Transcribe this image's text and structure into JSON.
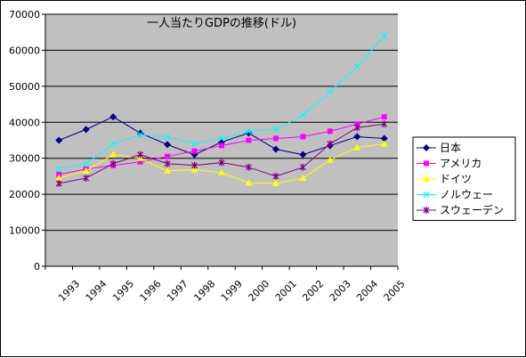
{
  "chart_data": {
    "type": "line",
    "title": "一人当たりGDPの推移(ドル)",
    "xlabel": "",
    "ylabel": "",
    "categories": [
      "1993",
      "1994",
      "1995",
      "1996",
      "1997",
      "1998",
      "1999",
      "2000",
      "2001",
      "2002",
      "2003",
      "2004",
      "2005"
    ],
    "ylim": [
      0,
      70000
    ],
    "ystep": 10000,
    "yticks": [
      "0",
      "10000",
      "20000",
      "30000",
      "40000",
      "50000",
      "60000",
      "70000"
    ],
    "grid": true,
    "legend_position": "right",
    "plot_background": "#c0c0c0",
    "series": [
      {
        "name": "日本",
        "color": "#000080",
        "marker": "diamond",
        "values": [
          35000,
          38000,
          41500,
          37000,
          33800,
          31000,
          34500,
          37000,
          32500,
          31000,
          33500,
          36000,
          35500
        ]
      },
      {
        "name": "アメリカ",
        "color": "#ff00ff",
        "marker": "square",
        "values": [
          25500,
          27000,
          28000,
          29000,
          30500,
          32000,
          33500,
          35000,
          35500,
          36000,
          37500,
          39500,
          41500
        ]
      },
      {
        "name": "ドイツ",
        "color": "#ffff00",
        "marker": "triangle",
        "values": [
          24500,
          26500,
          31000,
          30000,
          26500,
          26800,
          26000,
          23200,
          23000,
          24500,
          29500,
          33000,
          34000
        ]
      },
      {
        "name": "ノルウェー",
        "color": "#00ffff",
        "marker": "x",
        "values": [
          27000,
          28500,
          34000,
          36500,
          36000,
          34000,
          35500,
          37500,
          38000,
          42000,
          48500,
          55500,
          64000
        ]
      },
      {
        "name": "スウェーデン",
        "color": "#800080",
        "marker": "star",
        "values": [
          23000,
          24500,
          28500,
          31000,
          28500,
          28000,
          28800,
          27500,
          25000,
          27500,
          34000,
          38500,
          39500
        ]
      }
    ]
  }
}
